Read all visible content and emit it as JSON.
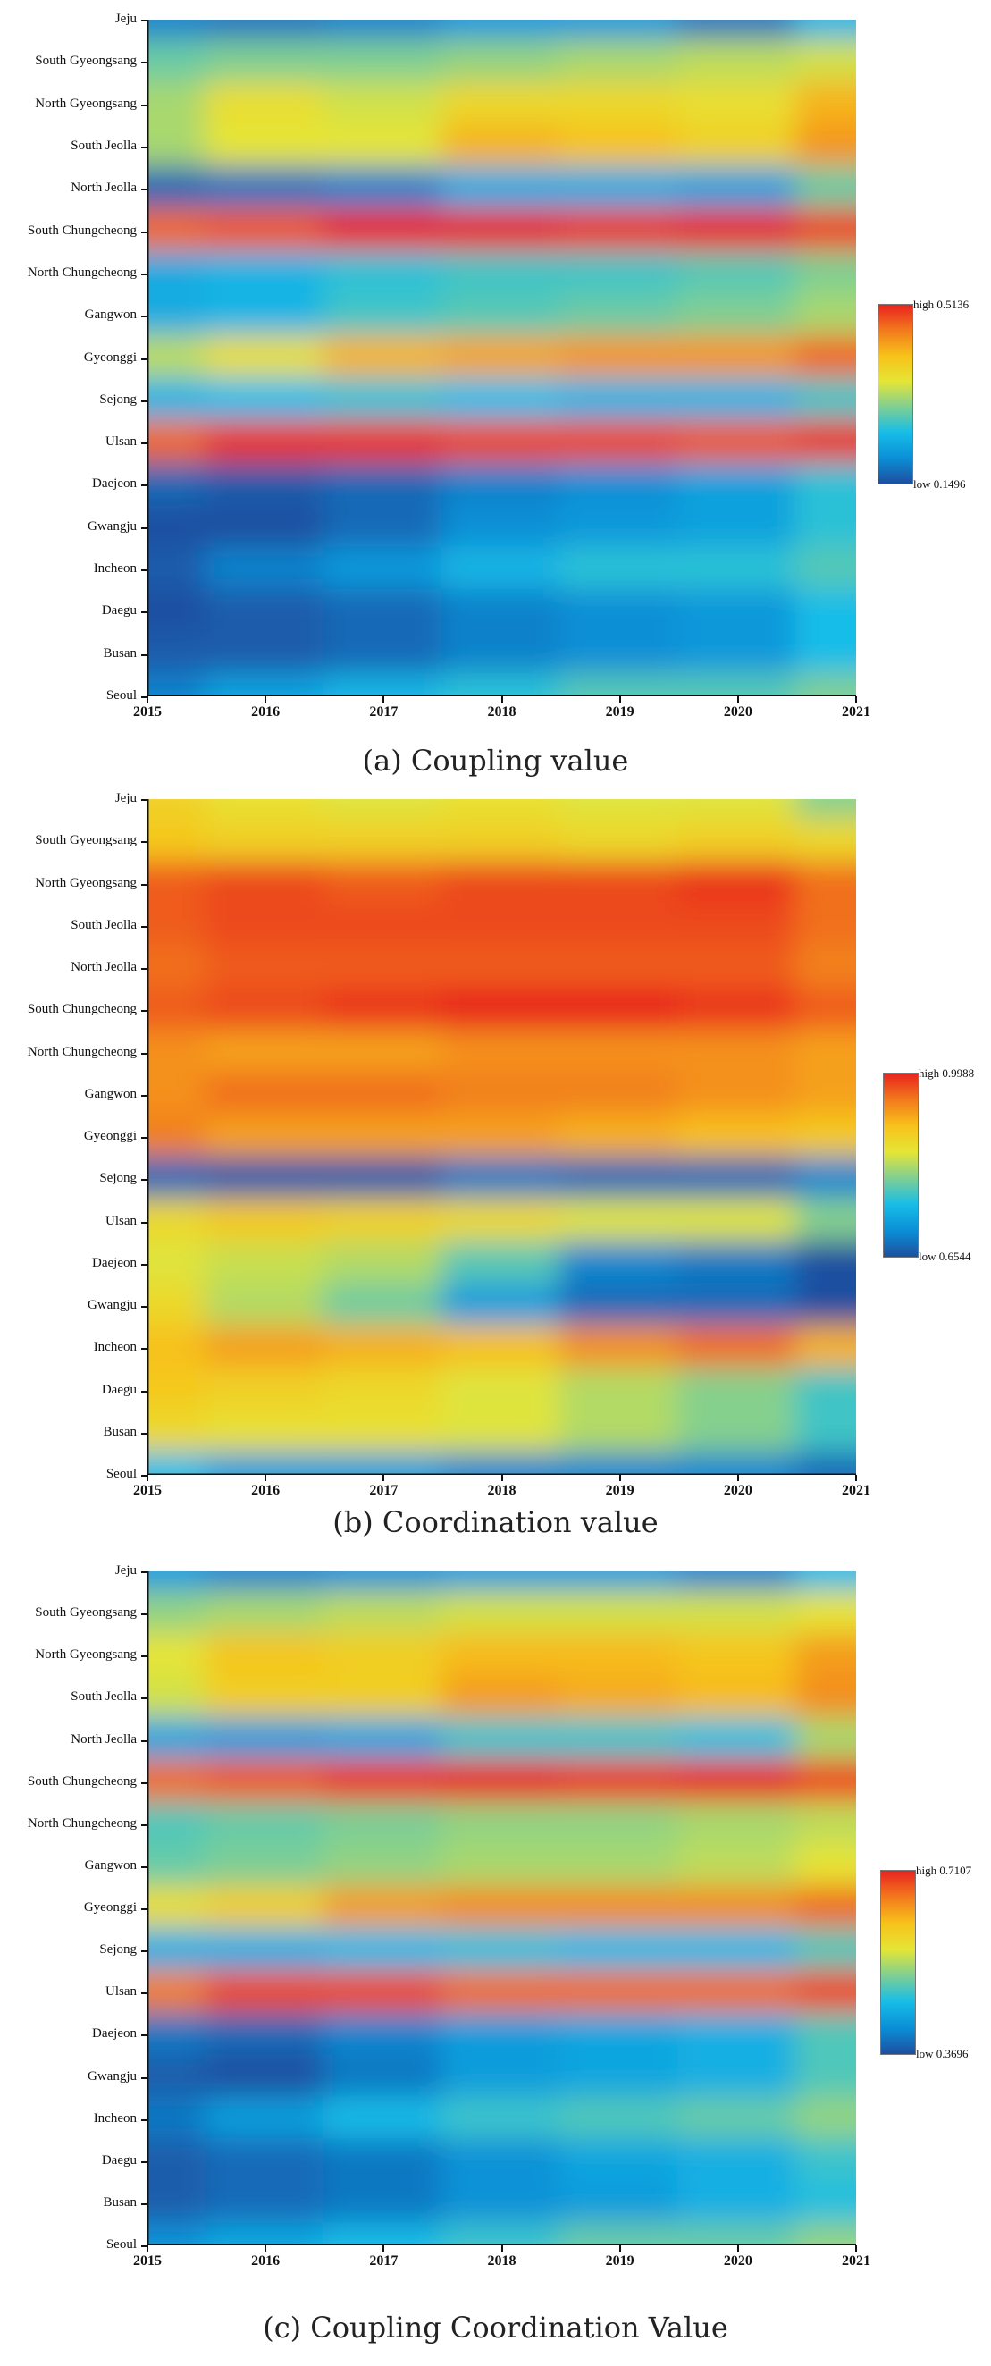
{
  "chart_data": [
    {
      "type": "heatmap",
      "title": "(a) Coupling value",
      "x": [
        "2015",
        "2016",
        "2017",
        "2018",
        "2019",
        "2020",
        "2021"
      ],
      "y": [
        "Jeju",
        "South Gyeongsang",
        "North Gyeongsang",
        "South Jeolla",
        "North Jeolla",
        "South Chungcheong",
        "North Chungcheong",
        "Gangwon",
        "Gyeonggi",
        "Sejong",
        "Ulsan",
        "Daejeon",
        "Gwangju",
        "Incheon",
        "Daegu",
        "Busan",
        "Seoul"
      ],
      "legend": {
        "high_label": "high",
        "high_value": "0.5136",
        "low_label": "low",
        "low_value": "0.1496"
      },
      "values": [
        [
          0.2,
          0.19,
          0.2,
          0.22,
          0.22,
          0.19,
          0.25
        ],
        [
          0.3,
          0.31,
          0.31,
          0.32,
          0.33,
          0.34,
          0.35
        ],
        [
          0.33,
          0.37,
          0.35,
          0.38,
          0.38,
          0.37,
          0.42
        ],
        [
          0.33,
          0.36,
          0.36,
          0.42,
          0.41,
          0.39,
          0.44
        ],
        [
          0.18,
          0.19,
          0.2,
          0.24,
          0.24,
          0.23,
          0.3
        ],
        [
          0.47,
          0.48,
          0.51,
          0.51,
          0.5,
          0.51,
          0.49
        ],
        [
          0.24,
          0.25,
          0.27,
          0.28,
          0.28,
          0.29,
          0.31
        ],
        [
          0.24,
          0.25,
          0.28,
          0.29,
          0.3,
          0.31,
          0.33
        ],
        [
          0.34,
          0.37,
          0.42,
          0.43,
          0.44,
          0.44,
          0.47
        ],
        [
          0.25,
          0.26,
          0.27,
          0.26,
          0.25,
          0.25,
          0.28
        ],
        [
          0.47,
          0.5,
          0.5,
          0.49,
          0.49,
          0.48,
          0.5
        ],
        [
          0.18,
          0.17,
          0.18,
          0.2,
          0.21,
          0.23,
          0.27
        ],
        [
          0.16,
          0.16,
          0.18,
          0.21,
          0.22,
          0.23,
          0.27
        ],
        [
          0.17,
          0.2,
          0.22,
          0.25,
          0.27,
          0.27,
          0.29
        ],
        [
          0.16,
          0.17,
          0.18,
          0.2,
          0.21,
          0.22,
          0.26
        ],
        [
          0.17,
          0.17,
          0.18,
          0.2,
          0.21,
          0.22,
          0.26
        ],
        [
          0.2,
          0.23,
          0.25,
          0.27,
          0.29,
          0.29,
          0.31
        ]
      ]
    },
    {
      "type": "heatmap",
      "title": "(b) Coordination value",
      "x": [
        "2015",
        "2016",
        "2017",
        "2018",
        "2019",
        "2020",
        "2021"
      ],
      "y": [
        "Jeju",
        "South Gyeongsang",
        "North Gyeongsang",
        "South Jeolla",
        "North Jeolla",
        "South Chungcheong",
        "North Chungcheong",
        "Gangwon",
        "Gyeonggi",
        "Sejong",
        "Ulsan",
        "Daejeon",
        "Gwangju",
        "Incheon",
        "Daegu",
        "Busan",
        "Seoul"
      ],
      "legend": {
        "high_label": "high",
        "high_value": "0.9988",
        "low_label": "low",
        "low_value": "0.6544"
      },
      "values": [
        [
          0.87,
          0.85,
          0.84,
          0.85,
          0.84,
          0.84,
          0.8
        ],
        [
          0.88,
          0.87,
          0.87,
          0.87,
          0.86,
          0.87,
          0.86
        ],
        [
          0.95,
          0.96,
          0.95,
          0.96,
          0.96,
          0.97,
          0.94
        ],
        [
          0.95,
          0.96,
          0.96,
          0.96,
          0.96,
          0.96,
          0.94
        ],
        [
          0.94,
          0.95,
          0.95,
          0.95,
          0.95,
          0.95,
          0.93
        ],
        [
          0.95,
          0.96,
          0.97,
          0.98,
          0.98,
          0.97,
          0.95
        ],
        [
          0.92,
          0.91,
          0.91,
          0.92,
          0.92,
          0.92,
          0.91
        ],
        [
          0.92,
          0.94,
          0.94,
          0.93,
          0.93,
          0.92,
          0.91
        ],
        [
          0.93,
          0.91,
          0.91,
          0.91,
          0.9,
          0.89,
          0.88
        ],
        [
          0.68,
          0.67,
          0.67,
          0.69,
          0.68,
          0.68,
          0.7
        ],
        [
          0.86,
          0.88,
          0.87,
          0.86,
          0.84,
          0.84,
          0.8
        ],
        [
          0.84,
          0.83,
          0.82,
          0.78,
          0.7,
          0.69,
          0.66
        ],
        [
          0.86,
          0.82,
          0.79,
          0.72,
          0.68,
          0.68,
          0.66
        ],
        [
          0.89,
          0.91,
          0.9,
          0.89,
          0.92,
          0.94,
          0.9
        ],
        [
          0.88,
          0.87,
          0.86,
          0.84,
          0.82,
          0.8,
          0.77
        ],
        [
          0.86,
          0.85,
          0.85,
          0.84,
          0.82,
          0.8,
          0.77
        ],
        [
          0.75,
          0.72,
          0.72,
          0.7,
          0.7,
          0.7,
          0.68
        ]
      ]
    },
    {
      "type": "heatmap",
      "title": "(c) Coupling Coordination Value",
      "x": [
        "2015",
        "2016",
        "2017",
        "2018",
        "2019",
        "2020",
        "2021"
      ],
      "y": [
        "Jeju",
        "South Gyeongsang",
        "North Gyeongsang",
        "South Jeolla",
        "North Jeolla",
        "South Chungcheong",
        "North Chungcheong",
        "Gangwon",
        "Gyeonggi",
        "Sejong",
        "Ulsan",
        "Daejeon",
        "Gwangju",
        "Incheon",
        "Daegu",
        "Busan",
        "Seoul"
      ],
      "legend": {
        "high_label": "high",
        "high_value": "0.7107",
        "low_label": "low",
        "low_value": "0.3696"
      },
      "values": [
        [
          0.44,
          0.42,
          0.43,
          0.44,
          0.44,
          0.42,
          0.47
        ],
        [
          0.53,
          0.54,
          0.55,
          0.56,
          0.56,
          0.56,
          0.57
        ],
        [
          0.57,
          0.61,
          0.6,
          0.62,
          0.62,
          0.61,
          0.64
        ],
        [
          0.56,
          0.6,
          0.6,
          0.64,
          0.63,
          0.62,
          0.65
        ],
        [
          0.45,
          0.44,
          0.45,
          0.49,
          0.49,
          0.48,
          0.54
        ],
        [
          0.67,
          0.68,
          0.7,
          0.71,
          0.7,
          0.71,
          0.69
        ],
        [
          0.5,
          0.51,
          0.52,
          0.53,
          0.53,
          0.54,
          0.55
        ],
        [
          0.51,
          0.52,
          0.53,
          0.54,
          0.54,
          0.55,
          0.57
        ],
        [
          0.58,
          0.6,
          0.64,
          0.65,
          0.65,
          0.65,
          0.67
        ],
        [
          0.46,
          0.46,
          0.47,
          0.48,
          0.47,
          0.47,
          0.5
        ],
        [
          0.66,
          0.69,
          0.69,
          0.67,
          0.67,
          0.67,
          0.69
        ],
        [
          0.41,
          0.4,
          0.42,
          0.44,
          0.45,
          0.46,
          0.5
        ],
        [
          0.39,
          0.38,
          0.41,
          0.44,
          0.45,
          0.46,
          0.5
        ],
        [
          0.41,
          0.44,
          0.47,
          0.49,
          0.5,
          0.51,
          0.53
        ],
        [
          0.39,
          0.4,
          0.41,
          0.43,
          0.45,
          0.46,
          0.49
        ],
        [
          0.39,
          0.4,
          0.41,
          0.43,
          0.44,
          0.46,
          0.48
        ],
        [
          0.43,
          0.45,
          0.47,
          0.49,
          0.51,
          0.51,
          0.53
        ]
      ]
    }
  ],
  "colors": {
    "scale": [
      "#1e4fa0",
      "#0a8fd6",
      "#17bde8",
      "#7fcf93",
      "#e5e536",
      "#f7c21a",
      "#f27a1d",
      "#e8231e"
    ]
  }
}
